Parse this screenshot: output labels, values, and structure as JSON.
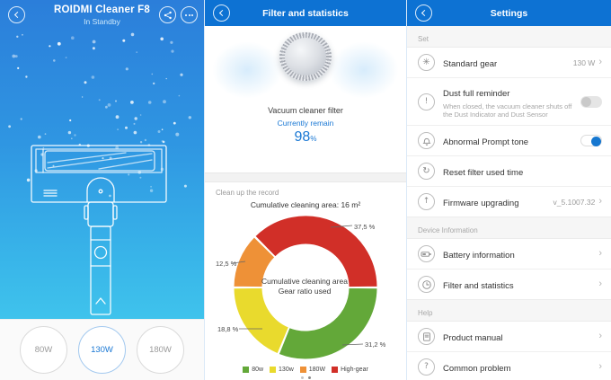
{
  "device_panel": {
    "title": "ROIDMI Cleaner F8",
    "status": "In Standby",
    "gears": [
      {
        "label": "80W",
        "selected": false
      },
      {
        "label": "130W",
        "selected": true
      },
      {
        "label": "180W",
        "selected": false
      }
    ]
  },
  "filter_panel": {
    "header": "Filter and statistics",
    "filter_name": "Vacuum cleaner filter",
    "remain_label": "Currently remain",
    "remain_value": "98",
    "remain_unit": "%",
    "record_section_title": "Clean up the record"
  },
  "chart_data": {
    "type": "pie",
    "variant": "donut",
    "title": "Cumulative cleaning area: 16 m²",
    "center_label_line1": "Cumulative cleaning area",
    "center_label_line2": "Gear ratio used",
    "start_angle_deg": 90,
    "direction": "clockwise",
    "segments": [
      {
        "name": "80w",
        "value": 31.2,
        "label": "31,2 %",
        "color": "#63a839"
      },
      {
        "name": "130w",
        "value": 18.8,
        "label": "18,8 %",
        "color": "#e9da2d"
      },
      {
        "name": "180W",
        "value": 12.5,
        "label": "12,5 %",
        "color": "#ee9137"
      },
      {
        "name": "High-gear",
        "value": 37.5,
        "label": "37,5 %",
        "color": "#d12f28"
      }
    ],
    "legend_position": "bottom"
  },
  "settings_panel": {
    "header": "Settings",
    "sections": [
      {
        "title": "Set",
        "items": [
          {
            "icon": "fan-icon",
            "label": "Standard gear",
            "value": "130 W",
            "chevron": true
          },
          {
            "icon": "exclamation-icon",
            "label": "Dust full reminder",
            "subtitle": "When closed, the vacuum cleaner shuts off the Dust Indicator and Dust Sensor",
            "toggle": true,
            "toggle_on": false
          },
          {
            "icon": "bell-icon",
            "label": "Abnormal Prompt tone",
            "toggle": true,
            "toggle_on": true
          },
          {
            "icon": "reset-icon",
            "label": "Reset filter used time"
          },
          {
            "icon": "upload-icon",
            "label": "Firmware upgrading",
            "value": "v_5.1007.32",
            "chevron": true
          }
        ]
      },
      {
        "title": "Device Information",
        "items": [
          {
            "icon": "battery-icon",
            "label": "Battery information",
            "chevron": true
          },
          {
            "icon": "clock-icon",
            "label": "Filter and statistics",
            "chevron": true
          }
        ]
      },
      {
        "title": "Help",
        "items": [
          {
            "icon": "manual-icon",
            "label": "Product manual",
            "chevron": true
          },
          {
            "icon": "question-icon",
            "label": "Common problem",
            "chevron": true
          }
        ]
      }
    ]
  }
}
